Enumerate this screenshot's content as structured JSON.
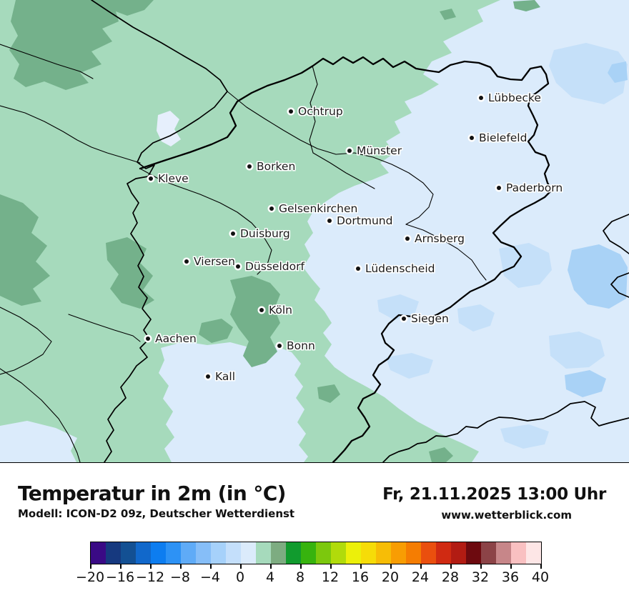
{
  "map": {
    "region_note": "Wetterkarte Nordrhein-Westfalen",
    "cities": [
      {
        "name": "Ochtrup"
      },
      {
        "name": "Lübbecke"
      },
      {
        "name": "Bielefeld"
      },
      {
        "name": "Münster"
      },
      {
        "name": "Kleve"
      },
      {
        "name": "Borken"
      },
      {
        "name": "Paderborn"
      },
      {
        "name": "Gelsenkirchen"
      },
      {
        "name": "Dortmund"
      },
      {
        "name": "Duisburg"
      },
      {
        "name": "Arnsberg"
      },
      {
        "name": "Viersen"
      },
      {
        "name": "Düsseldorf"
      },
      {
        "name": "Lüdenscheid"
      },
      {
        "name": "Köln"
      },
      {
        "name": "Siegen"
      },
      {
        "name": "Aachen"
      },
      {
        "name": "Bonn"
      },
      {
        "name": "Kall"
      }
    ],
    "palette": {
      "base_cold": "#dbebfb",
      "mint": "#a6dabc",
      "sage": "#74b18b",
      "light_blue": "#c5e0f9",
      "medium_blue": "#a9d2f6",
      "pale_patch": "#e6effc",
      "border": "#000000"
    }
  },
  "footer": {
    "title": "Temperatur in 2m (in °C)",
    "datetime": "Fr, 21.11.2025 13:00 Uhr",
    "model": "Modell: ICON-D2 09z, Deutscher Wetterdienst",
    "website": "www.wetterblick.com"
  },
  "colorbar": {
    "unit": "°C",
    "min": -20,
    "max": 40,
    "segment_step": 2,
    "tick_step": 4,
    "tick_labels": [
      "−20",
      "−16",
      "−12",
      "−8",
      "−4",
      "0",
      "4",
      "8",
      "12",
      "16",
      "20",
      "24",
      "28",
      "32",
      "36",
      "40"
    ],
    "segment_colors": [
      "#3a0a85",
      "#16397f",
      "#135093",
      "#1168cb",
      "#0d7df0",
      "#2d92f5",
      "#5fabf7",
      "#86bef8",
      "#a6d1fa",
      "#c4dffb",
      "#dbebfb",
      "#a6dabc",
      "#7dac81",
      "#119b2e",
      "#37b30e",
      "#7cc80d",
      "#b1db0b",
      "#ecf00a",
      "#f6dc08",
      "#f7bd06",
      "#f89d03",
      "#f57d02",
      "#ea4f0e",
      "#d02a12",
      "#b21c13",
      "#6d0a0f",
      "#8c4347",
      "#c78689",
      "#f9c0c1",
      "#fde6e6"
    ]
  }
}
